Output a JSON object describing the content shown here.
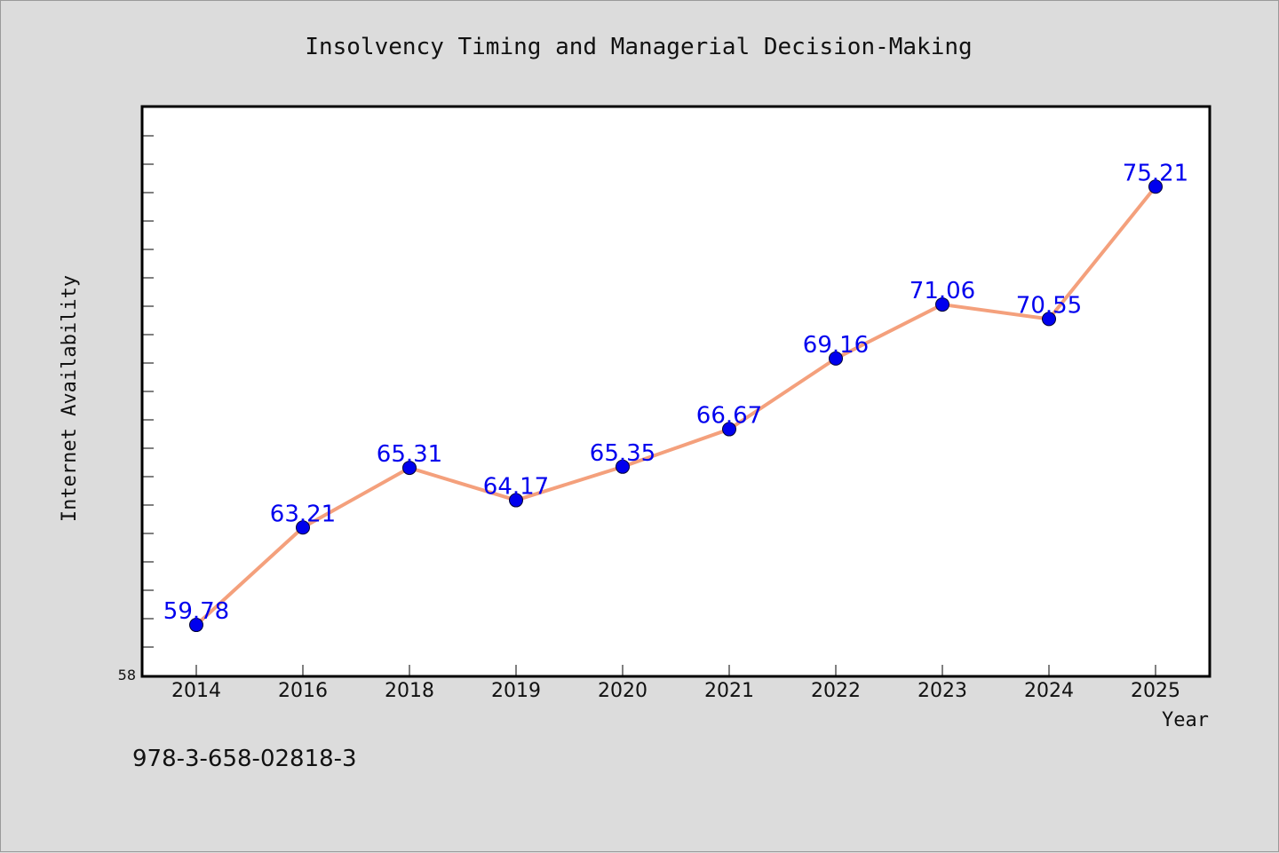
{
  "chart_data": {
    "type": "line",
    "title": "Insolvency Timing and Managerial Decision-Making",
    "xlabel": "Year",
    "ylabel": "Internet Availability",
    "categories": [
      "2014",
      "2016",
      "2018",
      "2019",
      "2020",
      "2021",
      "2022",
      "2023",
      "2024",
      "2025"
    ],
    "series": [
      {
        "values": [
          59.78,
          63.21,
          65.31,
          64.17,
          65.35,
          66.67,
          69.16,
          71.06,
          70.55,
          75.21
        ],
        "labels": [
          "59.78",
          "63.21",
          "65.31",
          "64.17",
          "65.35",
          "66.67",
          "69.16",
          "71.06",
          "70.55",
          "75.21"
        ]
      }
    ],
    "ylim": [
      58,
      78
    ],
    "y_min_label": "58",
    "grid": false,
    "legend": "none",
    "colors": {
      "line": "#f4a07c",
      "marker": "#0000ee",
      "data_label": "#0000ee",
      "plot_bg": "#ffffff",
      "figure_bg": "#dcdcdc"
    }
  },
  "footer": {
    "isbn": "978-3-658-02818-3"
  }
}
